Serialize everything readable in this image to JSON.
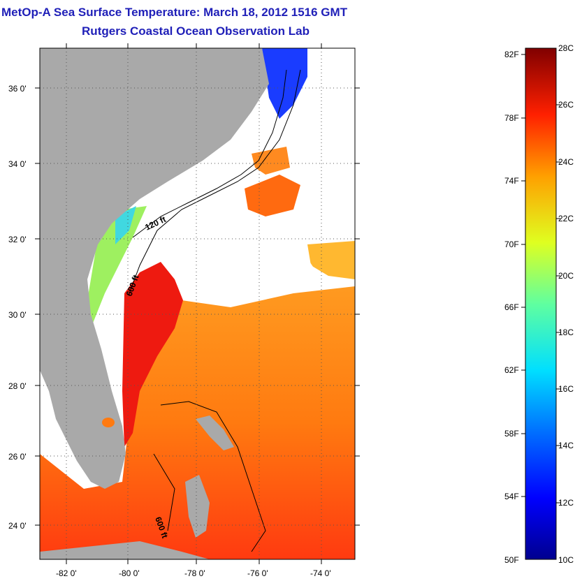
{
  "title_line1": "MetOp-A Sea Surface Temperature:  March 18, 2012 1516 GMT",
  "title_line2": "Rutgers Coastal Ocean Observation Lab",
  "lat_labels": [
    "36 0'",
    "34 0'",
    "32 0'",
    "30 0'",
    "28 0'",
    "26 0'",
    "24 0'"
  ],
  "lon_labels": [
    "-82 0'",
    "-80 0'",
    "-78 0'",
    "-76 0'",
    "-74 0'"
  ],
  "contour_labels": [
    "120 ft",
    "600 ft",
    "600 ft"
  ],
  "colorbar_f": [
    "82F",
    "78F",
    "74F",
    "70F",
    "66F",
    "62F",
    "58F",
    "54F",
    "50F"
  ],
  "colorbar_c": [
    "28C",
    "26C",
    "24C",
    "22C",
    "20C",
    "18C",
    "16C",
    "14C",
    "12C",
    "10C"
  ],
  "colors": {
    "title": "#1f1fb8",
    "land": "#a9a9a9",
    "cloud": "#ffffff"
  }
}
